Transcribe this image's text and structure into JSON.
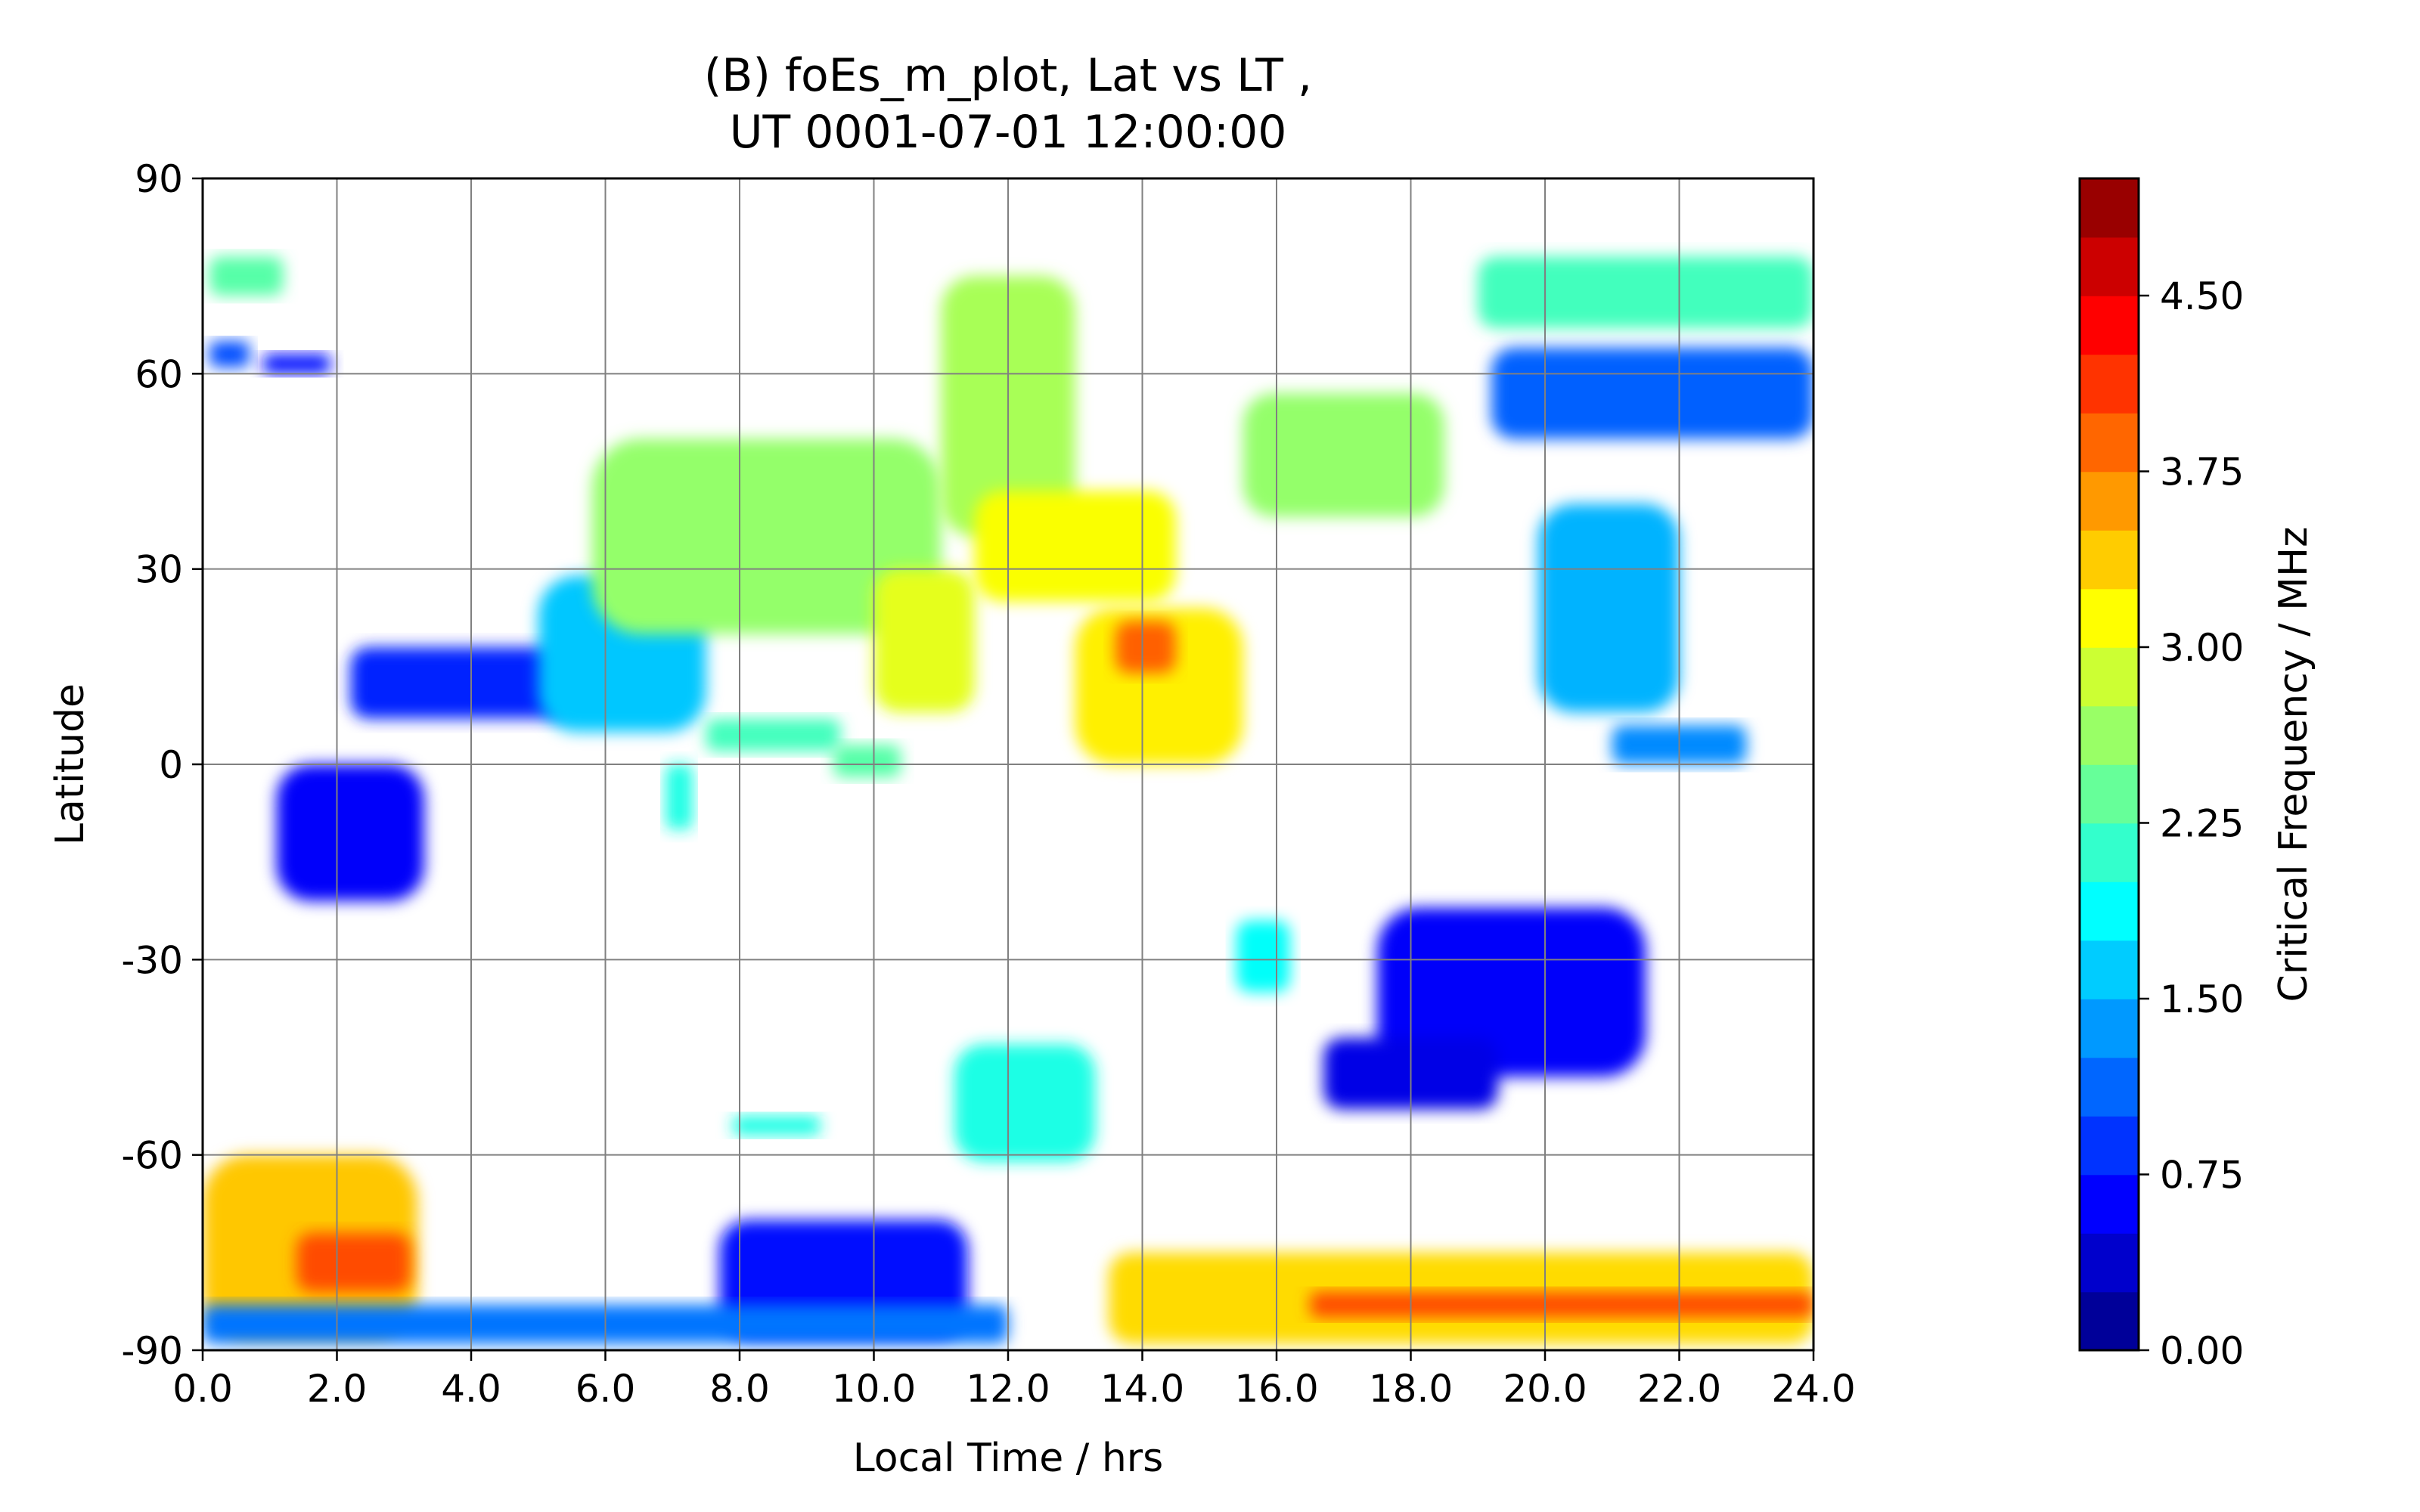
{
  "chart_data": {
    "type": "contour",
    "title_line1": "(B) foEs_m_plot, Lat vs LT ,",
    "title_line2": "UT 0001-07-01 12:00:00",
    "xlabel": "Local Time / hrs",
    "ylabel": "Latitude",
    "xlim": [
      0,
      24
    ],
    "ylim": [
      -90,
      90
    ],
    "xticks": [
      "0.0",
      "2.0",
      "4.0",
      "6.0",
      "8.0",
      "10.0",
      "12.0",
      "14.0",
      "16.0",
      "18.0",
      "20.0",
      "22.0",
      "24.0"
    ],
    "yticks": [
      "90",
      "60",
      "30",
      "0",
      "-30",
      "-60",
      "-90"
    ],
    "grid": true,
    "colorbar": {
      "label": "Critical Frequency / MHz",
      "range": [
        0,
        5
      ],
      "levels": 20,
      "ticks": [
        "0.00",
        "0.75",
        "1.50",
        "2.25",
        "3.00",
        "3.75",
        "4.50"
      ],
      "colormap": "jet"
    },
    "regions": [
      {
        "x": [
          0.1,
          1.2
        ],
        "y": [
          72,
          78
        ],
        "value": 2.3
      },
      {
        "x": [
          0.1,
          0.7
        ],
        "y": [
          61,
          65
        ],
        "value": 1.0
      },
      {
        "x": [
          0.9,
          1.9
        ],
        "y": [
          60,
          63
        ],
        "value": 0.7
      },
      {
        "x": [
          2.2,
          5.5
        ],
        "y": [
          7,
          18
        ],
        "value": 0.8
      },
      {
        "x": [
          5.0,
          7.5
        ],
        "y": [
          5,
          29
        ],
        "value": 1.6
      },
      {
        "x": [
          5.8,
          11.0
        ],
        "y": [
          20,
          50
        ],
        "value": 2.6
      },
      {
        "x": [
          10.0,
          11.5
        ],
        "y": [
          8,
          30
        ],
        "value": 3.0
      },
      {
        "x": [
          11.0,
          13.0
        ],
        "y": [
          35,
          75
        ],
        "value": 2.7
      },
      {
        "x": [
          11.5,
          14.5
        ],
        "y": [
          25,
          42
        ],
        "value": 3.1
      },
      {
        "x": [
          13.0,
          15.5
        ],
        "y": [
          0,
          24
        ],
        "value": 3.2
      },
      {
        "x": [
          13.6,
          14.5
        ],
        "y": [
          14,
          22
        ],
        "value": 3.9
      },
      {
        "x": [
          15.5,
          18.5
        ],
        "y": [
          38,
          57
        ],
        "value": 2.6
      },
      {
        "x": [
          1.1,
          3.3
        ],
        "y": [
          -21,
          0
        ],
        "value": 0.6
      },
      {
        "x": [
          6.9,
          7.3
        ],
        "y": [
          -10,
          0
        ],
        "value": 2.0
      },
      {
        "x": [
          7.5,
          9.5
        ],
        "y": [
          2,
          7
        ],
        "value": 2.2
      },
      {
        "x": [
          9.4,
          10.4
        ],
        "y": [
          -2,
          3
        ],
        "value": 2.3
      },
      {
        "x": [
          19.0,
          24.0
        ],
        "y": [
          67,
          78
        ],
        "value": 2.2
      },
      {
        "x": [
          19.2,
          24.0
        ],
        "y": [
          50,
          64
        ],
        "value": 1.1
      },
      {
        "x": [
          19.9,
          22.0
        ],
        "y": [
          8,
          40
        ],
        "value": 1.5
      },
      {
        "x": [
          21.0,
          23.0
        ],
        "y": [
          0,
          6
        ],
        "value": 1.3
      },
      {
        "x": [
          17.5,
          21.5
        ],
        "y": [
          -48,
          -22
        ],
        "value": 0.6
      },
      {
        "x": [
          16.7,
          19.3
        ],
        "y": [
          -53,
          -42
        ],
        "value": 0.5
      },
      {
        "x": [
          15.4,
          16.2
        ],
        "y": [
          -35,
          -24
        ],
        "value": 1.9
      },
      {
        "x": [
          11.2,
          13.3
        ],
        "y": [
          -61,
          -43
        ],
        "value": 2.0
      },
      {
        "x": [
          7.9,
          9.2
        ],
        "y": [
          -57,
          -54
        ],
        "value": 2.0
      },
      {
        "x": [
          7.7,
          11.4
        ],
        "y": [
          -88,
          -70
        ],
        "value": 0.7
      },
      {
        "x": [
          0.0,
          3.2
        ],
        "y": [
          -88,
          -60
        ],
        "value": 3.4
      },
      {
        "x": [
          1.4,
          3.1
        ],
        "y": [
          -81,
          -72
        ],
        "value": 4.0
      },
      {
        "x": [
          0.0,
          12.0
        ],
        "y": [
          -89,
          -83
        ],
        "value": 1.2
      },
      {
        "x": [
          13.5,
          24.0
        ],
        "y": [
          -89,
          -75
        ],
        "value": 3.3
      },
      {
        "x": [
          16.5,
          24.0
        ],
        "y": [
          -85,
          -81
        ],
        "value": 4.0
      }
    ]
  }
}
